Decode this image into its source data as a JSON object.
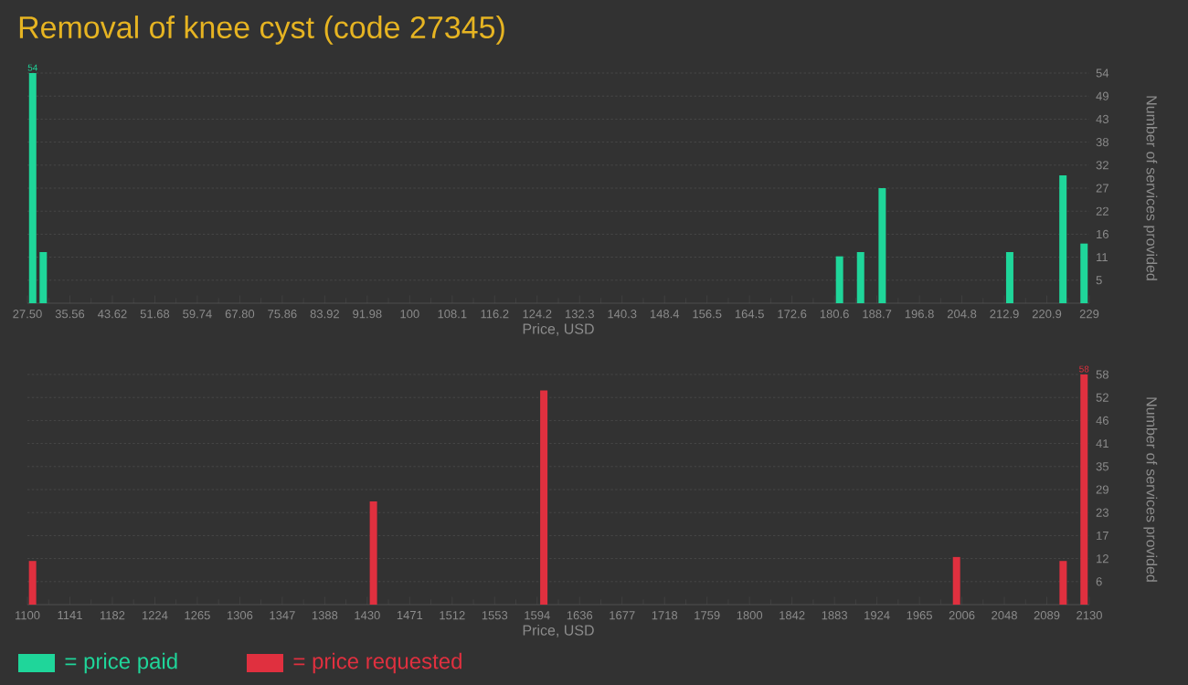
{
  "chart_data": [
    {
      "type": "bar",
      "title": "Removal of knee cyst (code 27345)",
      "xlabel": "Price, USD",
      "ylabel": "Number of services provided",
      "xlim": [
        27.5,
        229
      ],
      "ylim": [
        0,
        54
      ],
      "grid": "y",
      "legend": "bottom left",
      "xticks": [
        {
          "value": 27.5,
          "label": "27.50"
        },
        35.56,
        43.62,
        51.68,
        59.74,
        {
          "value": 67.8,
          "label": "67.80"
        },
        75.86,
        83.92,
        91.98,
        {
          "value": 100.04,
          "label": "100"
        },
        {
          "value": 108.1,
          "label": "108.1"
        },
        {
          "value": 116.16,
          "label": "116.2"
        },
        {
          "value": 124.22,
          "label": "124.2"
        },
        {
          "value": 132.28,
          "label": "132.3"
        },
        {
          "value": 140.34,
          "label": "140.3"
        },
        {
          "value": 148.4,
          "label": "148.4"
        },
        {
          "value": 156.46,
          "label": "156.5"
        },
        {
          "value": 164.52,
          "label": "164.5"
        },
        {
          "value": 172.58,
          "label": "172.6"
        },
        {
          "value": 180.64,
          "label": "180.6"
        },
        {
          "value": 188.7,
          "label": "188.7"
        },
        {
          "value": 196.76,
          "label": "196.8"
        },
        {
          "value": 204.82,
          "label": "204.8"
        },
        {
          "value": 212.88,
          "label": "212.9"
        },
        {
          "value": 220.94,
          "label": "220.9"
        },
        229
      ],
      "yticks": [
        {
          "value": 5.4,
          "label": "5"
        },
        {
          "value": 10.8,
          "label": "11"
        },
        {
          "value": 16.2,
          "label": "16"
        },
        {
          "value": 21.6,
          "label": "22"
        },
        {
          "value": 27,
          "label": "27"
        },
        {
          "value": 32.4,
          "label": "32"
        },
        {
          "value": 37.8,
          "label": "38"
        },
        {
          "value": 43.2,
          "label": "43"
        },
        {
          "value": 48.6,
          "label": "49"
        },
        54
      ],
      "series": [
        {
          "name": "= price paid",
          "color": "#1fd69a",
          "x": [
            28.5,
            30.5,
            181.6,
            185.6,
            189.7,
            213.9,
            224.0,
            228.0
          ],
          "values": [
            54,
            12,
            11,
            12,
            27,
            12,
            30,
            14
          ],
          "value_labels": [
            "54",
            null,
            null,
            null,
            null,
            null,
            null,
            null
          ]
        }
      ]
    },
    {
      "type": "bar",
      "xlabel": "Price, USD",
      "ylabel": "Number of services provided",
      "xlim": [
        1100,
        2130
      ],
      "ylim": [
        0,
        58
      ],
      "grid": "y",
      "legend": "bottom left",
      "xticks": [
        1100,
        {
          "value": 1141.2,
          "label": "1141"
        },
        {
          "value": 1182.4,
          "label": "1182"
        },
        {
          "value": 1223.6,
          "label": "1224"
        },
        {
          "value": 1264.8,
          "label": "1265"
        },
        1306,
        {
          "value": 1347.2,
          "label": "1347"
        },
        {
          "value": 1388.4,
          "label": "1388"
        },
        {
          "value": 1429.6,
          "label": "1430"
        },
        {
          "value": 1470.8,
          "label": "1471"
        },
        1512,
        {
          "value": 1553.2,
          "label": "1553"
        },
        {
          "value": 1594.4,
          "label": "1594"
        },
        {
          "value": 1635.6,
          "label": "1636"
        },
        {
          "value": 1676.8,
          "label": "1677"
        },
        1718,
        {
          "value": 1759.2,
          "label": "1759"
        },
        {
          "value": 1800.4,
          "label": "1800"
        },
        {
          "value": 1841.6,
          "label": "1842"
        },
        {
          "value": 1882.8,
          "label": "1883"
        },
        1924,
        {
          "value": 1965.2,
          "label": "1965"
        },
        {
          "value": 2006.4,
          "label": "2006"
        },
        {
          "value": 2047.6,
          "label": "2048"
        },
        {
          "value": 2088.8,
          "label": "2089"
        },
        2130
      ],
      "yticks": [
        {
          "value": 5.8,
          "label": "6"
        },
        {
          "value": 11.6,
          "label": "12"
        },
        {
          "value": 17.4,
          "label": "17"
        },
        {
          "value": 23.2,
          "label": "23"
        },
        {
          "value": 29,
          "label": "29"
        },
        {
          "value": 34.8,
          "label": "35"
        },
        {
          "value": 40.6,
          "label": "41"
        },
        {
          "value": 46.4,
          "label": "46"
        },
        {
          "value": 52.2,
          "label": "52"
        },
        58
      ],
      "series": [
        {
          "name": "= price requested",
          "color": "#e0303f",
          "x": [
            1105,
            1435.6,
            1600.9,
            2001.2,
            2104.6,
            2124.9
          ],
          "values": [
            11,
            26,
            54,
            12,
            11,
            58
          ],
          "value_labels": [
            null,
            null,
            null,
            null,
            null,
            "58"
          ]
        }
      ]
    }
  ]
}
